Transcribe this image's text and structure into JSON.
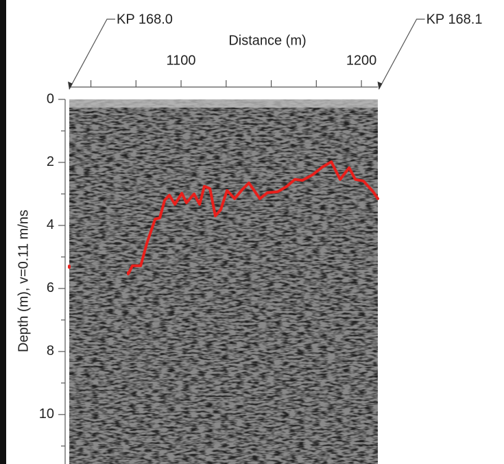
{
  "chart_data": {
    "type": "line",
    "xlabel": "Distance (m)",
    "ylabel": "Depth (m), v=0.11 m/ns",
    "annotations": [
      "KP 168.0",
      "KP 168.1"
    ],
    "annotation_x": [
      1038,
      1209.7
    ],
    "x": [
      1038,
      1039,
      1070.7,
      1073,
      1077.6,
      1081,
      1085.6,
      1088.2,
      1090.9,
      1093.5,
      1096.6,
      1100.4,
      1103,
      1107.2,
      1110.3,
      1112.9,
      1116,
      1119,
      1122,
      1125.5,
      1129.7,
      1133.8,
      1137.6,
      1141,
      1143.7,
      1147.9,
      1153.6,
      1158.6,
      1163.1,
      1167.3,
      1173,
      1178.3,
      1183.3,
      1188.2,
      1193.2,
      1196.6,
      1201.1,
      1206.5,
      1209.1
    ],
    "values": [
      5.33,
      null,
      5.54,
      5.28,
      5.28,
      4.57,
      3.8,
      3.76,
      3.2,
      3.04,
      3.33,
      2.98,
      3.28,
      3.0,
      3.33,
      2.76,
      2.83,
      3.7,
      3.5,
      2.89,
      3.15,
      2.87,
      2.65,
      2.93,
      3.15,
      2.96,
      2.93,
      2.76,
      2.54,
      2.57,
      2.39,
      2.15,
      1.98,
      2.54,
      2.17,
      2.54,
      2.59,
      2.93,
      3.15
    ],
    "color": "#e8201c",
    "xlim": [
      1038,
      1209.1
    ],
    "xticks": [
      1100,
      1200
    ],
    "xminor_ticks": [
      1050,
      1075,
      1125,
      1150,
      1175
    ],
    "ylim": [
      0,
      11.57
    ],
    "yticks": [
      0,
      2,
      4,
      6,
      8,
      10
    ],
    "yminor_ticks": [
      1,
      3,
      5,
      7,
      9,
      11
    ],
    "y_inverted": true
  }
}
